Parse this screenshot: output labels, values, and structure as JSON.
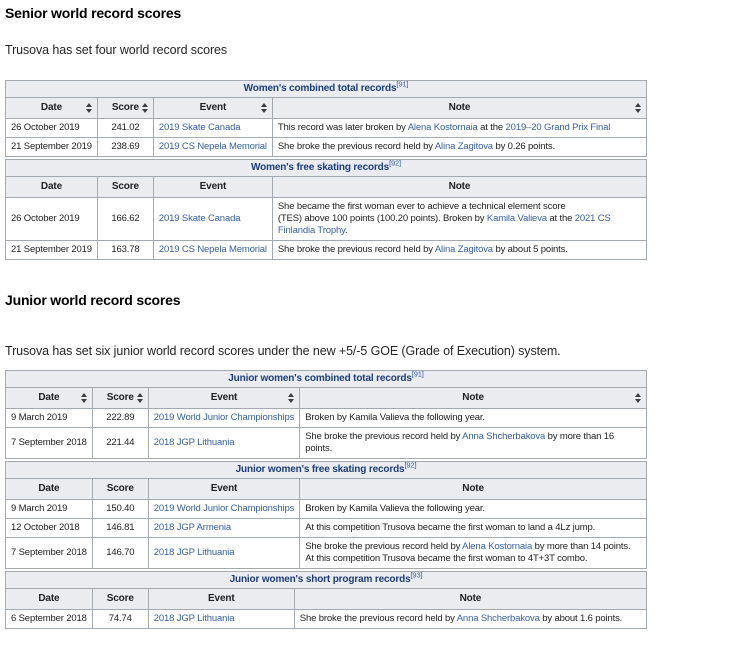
{
  "colors": {
    "link": "#3561a5",
    "caption_text": "#1b3d7b",
    "header_background": "#eaecf0",
    "table_border": "#a2a9b1"
  },
  "senior": {
    "heading": "Senior world record scores",
    "paragraph": "Trusova has set four world record scores",
    "tables": [
      {
        "caption": "Women's combined total records",
        "ref": "[91]",
        "sortable": true,
        "columns": [
          "Date",
          "Score",
          "Event",
          "Note"
        ],
        "rows": [
          {
            "date": "26 October 2019",
            "score": "241.02",
            "event": "2019 Skate Canada",
            "note": [
              {
                "t": "This record was later broken by "
              },
              {
                "t": "Alena Kostornaia",
                "link": true
              },
              {
                "t": " at the "
              },
              {
                "t": "2019–20 Grand Prix Final",
                "link": true
              }
            ]
          },
          {
            "date": "21 September 2019",
            "score": "238.69",
            "event": "2019 CS Nepela Memorial",
            "note": [
              {
                "t": "She broke the previous record held by "
              },
              {
                "t": "Alina Zagitova",
                "link": true
              },
              {
                "t": " by 0.26 points."
              }
            ]
          }
        ]
      },
      {
        "caption": "Women's free skating records",
        "ref": "[92]",
        "sortable": false,
        "columns": [
          "Date",
          "Score",
          "Event",
          "Note"
        ],
        "rows": [
          {
            "date": "26 October 2019",
            "score": "166.62",
            "event": "2019 Skate Canada",
            "note": [
              {
                "t": "She became the first woman ever to achieve a technical element score"
              },
              {
                "br": true
              },
              {
                "t": "(TES) above 100 points (100.20 points). Broken by "
              },
              {
                "t": "Kamila Valieva",
                "link": true
              },
              {
                "t": " at the "
              },
              {
                "t": "2021 CS Finlandia Trophy",
                "link": true
              },
              {
                "t": "."
              }
            ]
          },
          {
            "date": "21 September 2019",
            "score": "163.78",
            "event": "2019 CS Nepela Memorial",
            "note": [
              {
                "t": "She broke the previous record held by "
              },
              {
                "t": "Alina Zagitova",
                "link": true
              },
              {
                "t": " by about 5 points."
              }
            ]
          }
        ]
      }
    ]
  },
  "junior": {
    "heading": "Junior world record scores",
    "paragraph": "Trusova has set six junior world record scores under the new +5/-5 GOE (Grade of Execution) system.",
    "tables": [
      {
        "caption": "Junior women's combined total records",
        "ref": "[91]",
        "sortable": true,
        "columns": [
          "Date",
          "Score",
          "Event",
          "Note"
        ],
        "rows": [
          {
            "date": "9 March 2019",
            "score": "222.89",
            "event": "2019 World Junior Championships",
            "note": [
              {
                "t": "Broken by Kamila Valieva the following year."
              }
            ]
          },
          {
            "date": "7 September 2018",
            "score": "221.44",
            "event": "2018 JGP Lithuania",
            "note": [
              {
                "t": "She broke the previous record held by "
              },
              {
                "t": "Anna Shcherbakova",
                "link": true
              },
              {
                "t": " by more than 16 points."
              }
            ]
          }
        ]
      },
      {
        "caption": "Junior women's free skating records",
        "ref": "[92]",
        "sortable": false,
        "columns": [
          "Date",
          "Score",
          "Event",
          "Note"
        ],
        "rows": [
          {
            "date": "9 March 2019",
            "score": "150.40",
            "event": "2019 World Junior Championships",
            "note": [
              {
                "t": "Broken by Kamila Valieva the following year."
              }
            ]
          },
          {
            "date": "12 October 2018",
            "score": "146.81",
            "event": "2018 JGP Armenia",
            "note": [
              {
                "t": "At this competition Trusova became the first woman to land a 4Lz jump."
              }
            ]
          },
          {
            "date": "7 September 2018",
            "score": "146.70",
            "event": "2018 JGP Lithuania",
            "note": [
              {
                "t": "She broke the previous record held by "
              },
              {
                "t": "Alena Kostornaia",
                "link": true
              },
              {
                "t": " by more than 14 points."
              },
              {
                "br": true
              },
              {
                "t": "At this competition Trusova became the first woman to 4T+3T combo."
              }
            ]
          }
        ]
      },
      {
        "caption": "Junior women's short program records",
        "ref": "[93]",
        "sortable": false,
        "columns": [
          "Date",
          "Score",
          "Event",
          "Note"
        ],
        "rows": [
          {
            "date": "6 September 2018",
            "score": "74.74",
            "event": "2018 JGP Lithuania",
            "note": [
              {
                "t": "She broke the previous record held by "
              },
              {
                "t": "Anna Shcherbakova",
                "link": true
              },
              {
                "t": " by about 1.6 points."
              }
            ]
          }
        ]
      }
    ]
  }
}
